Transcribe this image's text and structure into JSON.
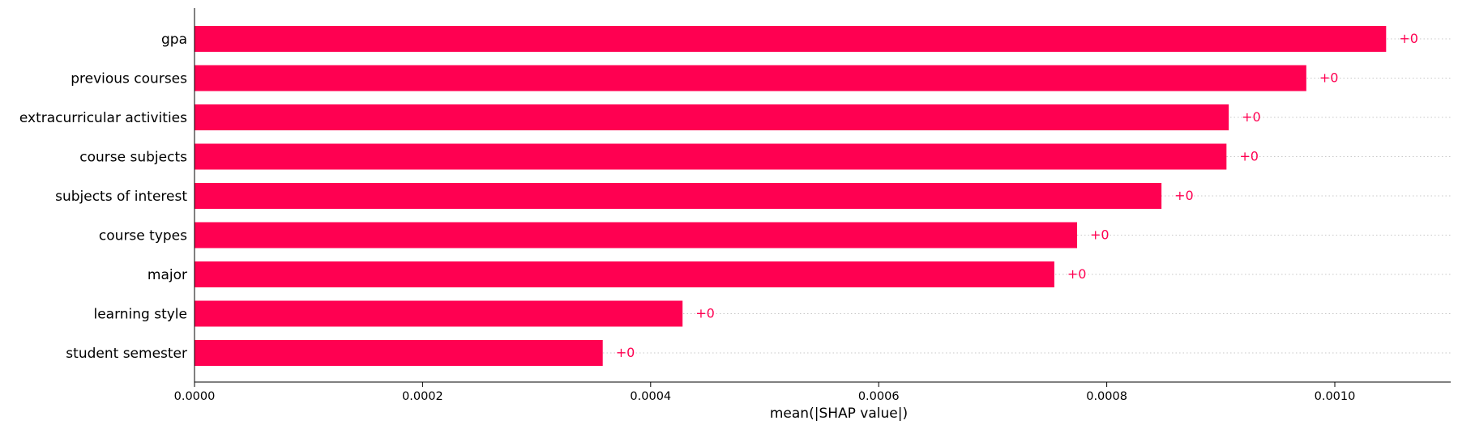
{
  "chart_data": {
    "type": "bar",
    "orientation": "horizontal",
    "title": "",
    "xlabel": "mean(|SHAP value|)",
    "ylabel": "",
    "xlim": [
      0,
      0.00115
    ],
    "xticks": [
      0,
      0.0002,
      0.0004,
      0.0006,
      0.0008,
      0.001
    ],
    "xtick_labels": [
      "0.0000",
      "0.0002",
      "0.0004",
      "0.0006",
      "0.0008",
      "0.0010"
    ],
    "categories": [
      "gpa",
      "previous courses",
      "extracurricular activities",
      "course subjects",
      "subjects of interest",
      "course types",
      "major",
      "learning style",
      "student semester"
    ],
    "values": [
      0.001045,
      0.000975,
      0.000907,
      0.000905,
      0.000848,
      0.000774,
      0.000754,
      0.000428,
      0.000358
    ],
    "value_labels": [
      "+0",
      "+0",
      "+0",
      "+0",
      "+0",
      "+0",
      "+0",
      "+0",
      "+0"
    ],
    "grid": "dotted row lines",
    "bar_color": "#ff0051",
    "label_color": "#ff0051"
  }
}
